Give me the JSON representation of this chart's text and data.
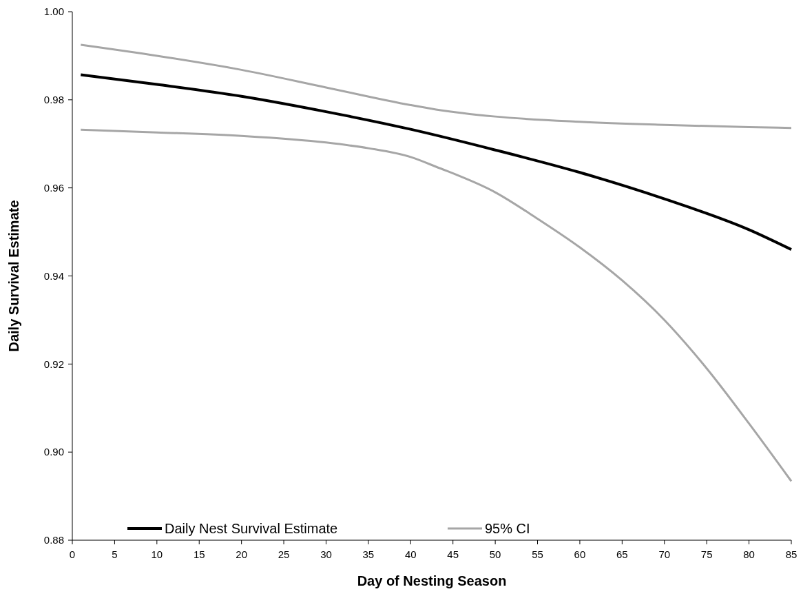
{
  "chart_data": {
    "type": "line",
    "xlabel": "Day of Nesting Season",
    "ylabel": "Daily Survival Estimate",
    "xlim": [
      0,
      85
    ],
    "xticks": [
      0,
      5,
      10,
      15,
      20,
      25,
      30,
      35,
      40,
      45,
      50,
      55,
      60,
      65,
      70,
      75,
      80,
      85
    ],
    "ylim": [
      0.88,
      1.0
    ],
    "yticks": [
      {
        "value": 0.88,
        "label": "0.88"
      },
      {
        "value": 0.9,
        "label": "0.90"
      },
      {
        "value": 0.92,
        "label": "0.92"
      },
      {
        "value": 0.94,
        "label": "0.94"
      },
      {
        "value": 0.96,
        "label": "0.96"
      },
      {
        "value": 0.98,
        "label": "0.98"
      },
      {
        "value": 1.0,
        "label": "1.00"
      }
    ],
    "grid": false,
    "legend": "bottom left",
    "marker": "none",
    "line_style": "solid",
    "series": [
      {
        "name": "Daily Nest Survival Estimate",
        "color": "#000000",
        "x": [
          1,
          10,
          20,
          30,
          40,
          50,
          60,
          70,
          80,
          85
        ],
        "values": [
          0.9857,
          0.9835,
          0.9808,
          0.9773,
          0.9733,
          0.9686,
          0.9635,
          0.9575,
          0.9505,
          0.946
        ]
      },
      {
        "name": "95% CI",
        "color": "#a6a6a6",
        "x": [
          1,
          10,
          20,
          30,
          40,
          43,
          50,
          60,
          70,
          80,
          85
        ],
        "values": [
          0.9925,
          0.99,
          0.9868,
          0.9828,
          0.9788,
          0.9778,
          0.9762,
          0.975,
          0.9743,
          0.9738,
          0.9736
        ]
      },
      {
        "color": "#a6a6a6",
        "x": [
          1,
          10,
          20,
          30,
          35,
          40,
          43,
          50,
          55,
          60,
          65,
          70,
          75,
          80,
          85
        ],
        "values": [
          0.9732,
          0.9726,
          0.9718,
          0.9703,
          0.969,
          0.967,
          0.9648,
          0.959,
          0.953,
          0.9465,
          0.939,
          0.93,
          0.919,
          0.9065,
          0.8934
        ]
      }
    ]
  }
}
